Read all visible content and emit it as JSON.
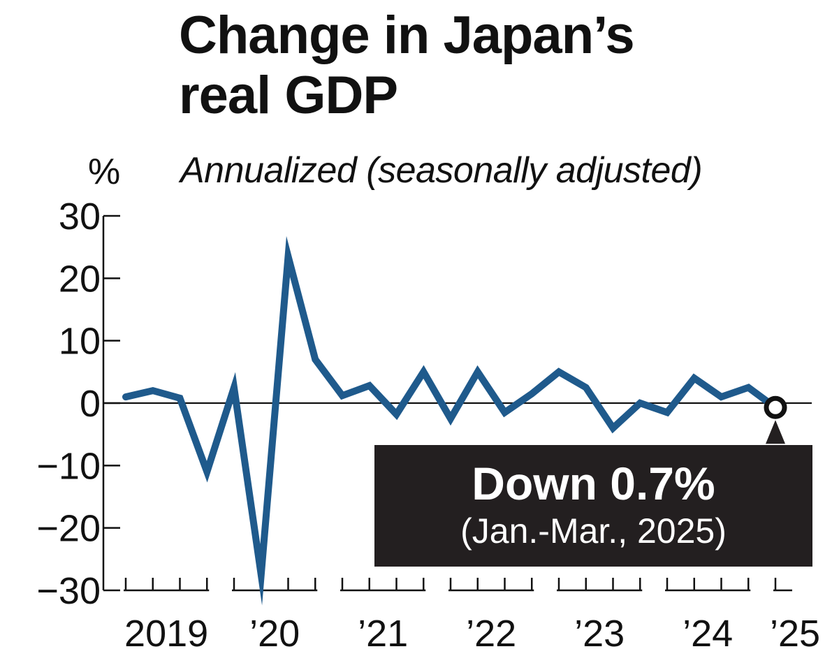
{
  "chart_data": {
    "type": "line",
    "title": "Change in Japan’s real GDP",
    "title_lines": [
      "Change in Japan’s",
      "real GDP"
    ],
    "subtitle": "Annualized (seasonally adjusted)",
    "ylabel": "%",
    "ylim": [
      -30,
      30
    ],
    "yticks": [
      30,
      20,
      10,
      0,
      -10,
      -20,
      -30
    ],
    "ytick_labels": [
      "30",
      "20",
      "10",
      "0",
      "−10",
      "−20",
      "−30"
    ],
    "year_labels": [
      "2019",
      "’20",
      "’21",
      "’22",
      "’23",
      "’24",
      "’25"
    ],
    "quarters_per_year": 4,
    "grid": false,
    "colors": {
      "line": "#1f5a8c",
      "axis": "#111111",
      "callout_bg": "#231f20",
      "callout_text": "#ffffff"
    },
    "series": [
      {
        "values": [
          1.0,
          2.0,
          0.8,
          -11.0,
          2.5,
          -27.5,
          23.5,
          7.0,
          1.2,
          2.8,
          -1.8,
          5.0,
          -2.5,
          5.0,
          -1.5,
          1.5,
          5.0,
          2.5,
          -4.0,
          0.0,
          -1.5,
          4.0,
          1.0,
          2.5,
          -0.7
        ]
      }
    ],
    "annotation": {
      "title": "Down 0.7%",
      "subtitle": "(Jan.-Mar., 2025)"
    }
  }
}
